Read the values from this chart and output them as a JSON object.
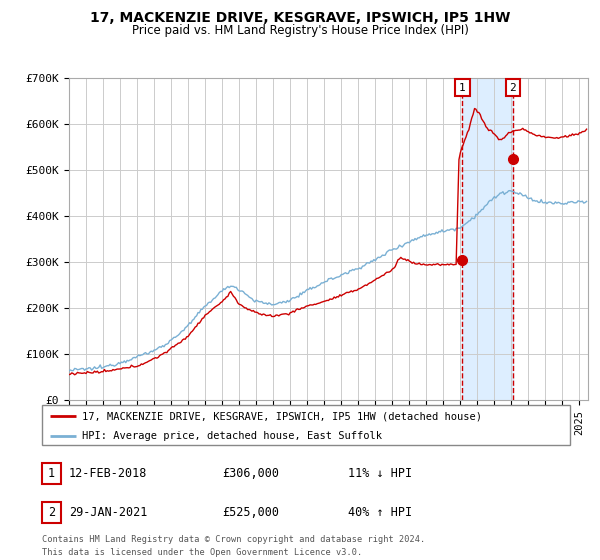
{
  "title": "17, MACKENZIE DRIVE, KESGRAVE, IPSWICH, IP5 1HW",
  "subtitle": "Price paid vs. HM Land Registry's House Price Index (HPI)",
  "ylim": [
    0,
    700000
  ],
  "yticks": [
    0,
    100000,
    200000,
    300000,
    400000,
    500000,
    600000,
    700000
  ],
  "ytick_labels": [
    "£0",
    "£100K",
    "£200K",
    "£300K",
    "£400K",
    "£500K",
    "£600K",
    "£700K"
  ],
  "xlim_start": 1995.0,
  "xlim_end": 2025.5,
  "hpi_color": "#7ab0d4",
  "price_color": "#cc0000",
  "sale1_date": 2018.12,
  "sale1_price": 306000,
  "sale2_date": 2021.08,
  "sale2_price": 525000,
  "annotation1": "1",
  "annotation2": "2",
  "legend_price": "17, MACKENZIE DRIVE, KESGRAVE, IPSWICH, IP5 1HW (detached house)",
  "legend_hpi": "HPI: Average price, detached house, East Suffolk",
  "footer1": "Contains HM Land Registry data © Crown copyright and database right 2024.",
  "footer2": "This data is licensed under the Open Government Licence v3.0.",
  "table_row1": [
    "1",
    "12-FEB-2018",
    "£306,000",
    "11% ↓ HPI"
  ],
  "table_row2": [
    "2",
    "29-JAN-2021",
    "£525,000",
    "40% ↑ HPI"
  ],
  "background_color": "#ffffff",
  "plot_bg_color": "#ffffff",
  "grid_color": "#cccccc",
  "shade_color": "#ddeeff"
}
